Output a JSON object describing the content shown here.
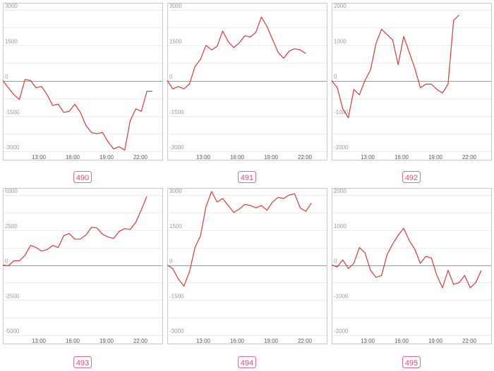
{
  "colors": {
    "line": "#d33a3a",
    "badge": "#e04a78",
    "frame": "#c8c8c8",
    "zero_line": "#9a9a9a"
  },
  "chart_data": [
    {
      "type": "line",
      "id": "490",
      "x_ticks": [
        "13:00",
        "16:00",
        "19:00",
        "22:00"
      ],
      "y_ticks": [
        3000,
        1500,
        0,
        -1500,
        -3000
      ],
      "ylim": [
        -3000,
        3000
      ],
      "series": [
        {
          "values": [
            0,
            -300,
            -600,
            -800,
            50,
            0,
            -300,
            -250,
            -600,
            -1050,
            -1000,
            -1350,
            -1300,
            -1000,
            -1350,
            -1900,
            -2200,
            -2250,
            -2200,
            -2600,
            -2900,
            -2800,
            -2950,
            -1700,
            -1200,
            -1300,
            -450,
            -450
          ]
        }
      ]
    },
    {
      "type": "line",
      "id": "491",
      "x_ticks": [
        "13:00",
        "16:00",
        "19:00",
        "22:00"
      ],
      "y_ticks": [
        3000,
        1500,
        0,
        -1500,
        -3000
      ],
      "ylim": [
        -3000,
        3000
      ],
      "series": [
        {
          "values": [
            0,
            -350,
            -250,
            -350,
            -150,
            600,
            900,
            1500,
            1300,
            1450,
            2100,
            1650,
            1400,
            1600,
            1900,
            1850,
            2050,
            2700,
            2300,
            1750,
            1200,
            950,
            1250,
            1350,
            1300,
            1150
          ]
        }
      ]
    },
    {
      "type": "line",
      "id": "492",
      "x_ticks": [
        "13:00",
        "16:00",
        "19:00",
        "22:00"
      ],
      "y_ticks": [
        2000,
        1000,
        0,
        -1000,
        -2000
      ],
      "ylim": [
        -2000,
        2000
      ],
      "series": [
        {
          "values": [
            0,
            -200,
            -800,
            -1050,
            -250,
            -400,
            0,
            300,
            1050,
            1450,
            1300,
            1150,
            450,
            1250,
            800,
            350,
            -200,
            -100,
            -100,
            -250,
            -350,
            -100,
            1700,
            1850
          ]
        }
      ]
    },
    {
      "type": "line",
      "id": "493",
      "x_ticks": [
        "13:00",
        "16:00",
        "19:00",
        "22:00"
      ],
      "y_ticks": [
        5000,
        2500,
        0,
        -2500,
        -5000
      ],
      "ylim": [
        -5000,
        5000
      ],
      "series": [
        {
          "values": [
            0,
            -50,
            300,
            300,
            700,
            1400,
            1250,
            1000,
            1100,
            1400,
            1250,
            2100,
            2250,
            1850,
            1850,
            2150,
            2700,
            2650,
            2200,
            2000,
            1900,
            2400,
            2600,
            2550,
            3050,
            3950,
            4900
          ]
        }
      ]
    },
    {
      "type": "line",
      "id": "494",
      "x_ticks": [
        "13:00",
        "16:00",
        "19:00",
        "22:00"
      ],
      "y_ticks": [
        3000,
        1500,
        0,
        -1500,
        -3000
      ],
      "ylim": [
        -3000,
        3000
      ],
      "series": [
        {
          "values": [
            0,
            -150,
            -600,
            -900,
            -300,
            750,
            1250,
            2500,
            3150,
            2700,
            2850,
            2550,
            2250,
            2400,
            2600,
            2550,
            2450,
            2550,
            2350,
            2700,
            2900,
            2850,
            3000,
            3050,
            2450,
            2300,
            2650
          ]
        }
      ]
    },
    {
      "type": "line",
      "id": "495",
      "x_ticks": [
        "13:00",
        "16:00",
        "19:00",
        "22:00"
      ],
      "y_ticks": [
        2000,
        1000,
        0,
        -1000,
        -2000
      ],
      "ylim": [
        -2000,
        2000
      ],
      "series": [
        {
          "values": [
            0,
            -50,
            150,
            -100,
            50,
            500,
            350,
            -150,
            -350,
            -300,
            300,
            600,
            850,
            1050,
            700,
            450,
            50,
            250,
            200,
            -300,
            -650,
            -150,
            -550,
            -500,
            -300,
            -650,
            -500,
            -150
          ]
        }
      ]
    }
  ]
}
